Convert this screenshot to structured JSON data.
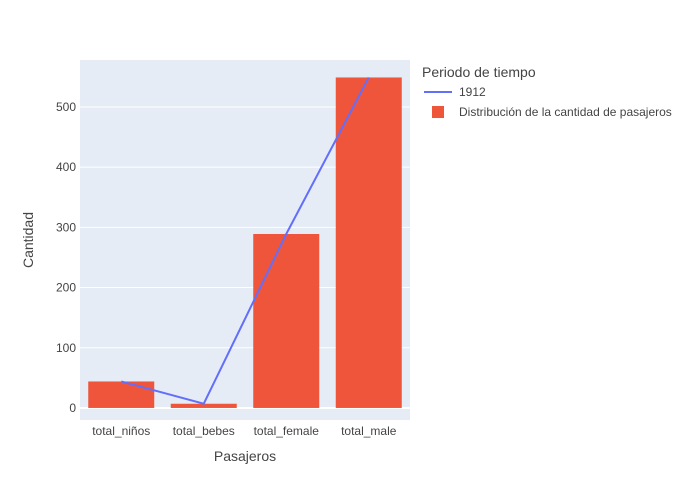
{
  "chart_data": {
    "type": "bar",
    "categories": [
      "total_niños",
      "total_bebes",
      "total_female",
      "total_male"
    ],
    "series": [
      {
        "name": "Distribución de la cantidad de pasajeros",
        "type": "bar",
        "values": [
          44,
          7,
          289,
          549
        ],
        "color": "#EF553B"
      },
      {
        "name": "1912",
        "type": "line",
        "values": [
          44,
          7,
          289,
          549
        ],
        "color": "#636EFA"
      }
    ],
    "xlabel": "Pasajeros",
    "ylabel": "Cantidad",
    "ylim": [
      -20,
      578
    ],
    "yticks": [
      0,
      100,
      200,
      300,
      400,
      500
    ],
    "legend_title": "Periodo de tiempo",
    "legend_position": "top-right",
    "grid": true,
    "colors": {
      "plot_background": "#E5ECF6",
      "grid": "#ffffff",
      "text": "#444444"
    }
  }
}
